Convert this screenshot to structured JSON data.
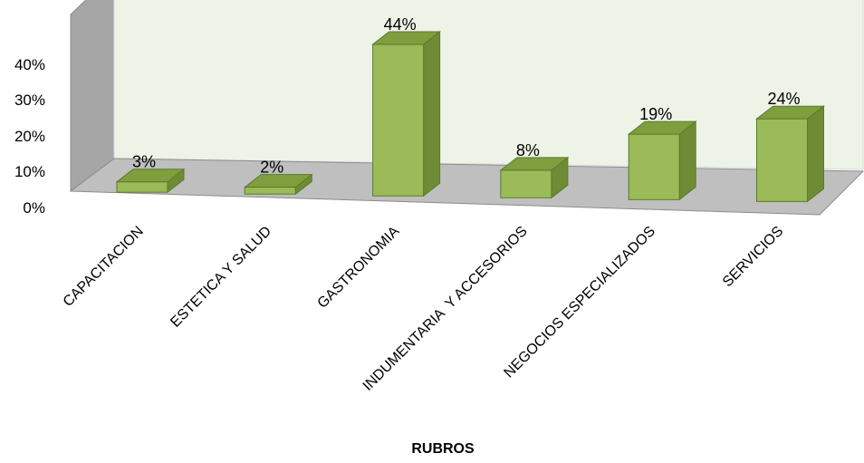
{
  "chart_data": {
    "type": "bar",
    "style": "3d-column",
    "title": "",
    "xlabel": "RUBROS",
    "ylabel": "",
    "categories": [
      "CAPACITACION",
      "ESTETICA Y SALUD",
      "GASTRONOMIA",
      "INDUMENTARIA  Y ACCESORIOS",
      "NEGOCIOS ESPECIALIZADOS",
      "SERVICIOS"
    ],
    "values": [
      3,
      2,
      44,
      8,
      19,
      24
    ],
    "data_labels": [
      "3%",
      "2%",
      "44%",
      "8%",
      "19%",
      "24%"
    ],
    "yticks": [
      0,
      10,
      20,
      30,
      40
    ],
    "ytick_labels": [
      "0%",
      "10%",
      "20%",
      "30%",
      "40%"
    ],
    "ylim": [
      0,
      50
    ],
    "grid": false,
    "legend": "none"
  },
  "colors": {
    "bar_front": "#9bbb59",
    "bar_top": "#7f9f3f",
    "bar_side": "#6e8c35",
    "bar_edge": "#5b7a2a",
    "back_wall": "#eef3e8",
    "side_wall": "#a6a6a6",
    "floor": "#bfbfbf",
    "wall_edge": "#8c8c8c"
  }
}
